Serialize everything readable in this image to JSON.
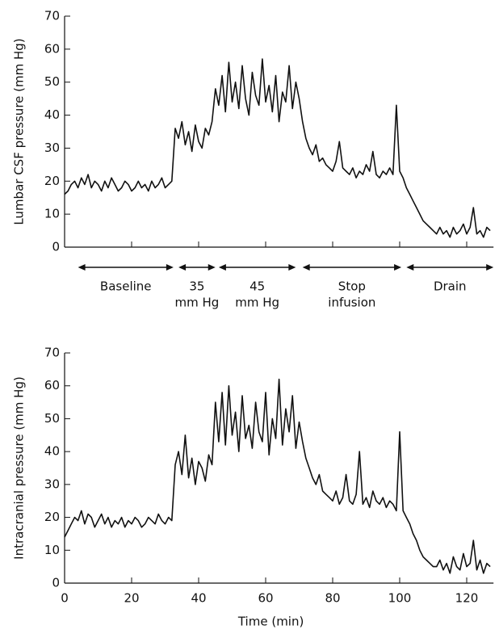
{
  "chart_data": [
    {
      "type": "line",
      "y_label": "Lumbar CSF pressure (mm Hg)",
      "x": [
        0,
        1,
        2,
        3,
        4,
        5,
        6,
        7,
        8,
        9,
        10,
        11,
        12,
        13,
        14,
        15,
        16,
        17,
        18,
        19,
        20,
        21,
        22,
        23,
        24,
        25,
        26,
        27,
        28,
        29,
        30,
        31,
        32,
        33,
        34,
        35,
        36,
        37,
        38,
        39,
        40,
        41,
        42,
        43,
        44,
        45,
        46,
        47,
        48,
        49,
        50,
        51,
        52,
        53,
        54,
        55,
        56,
        57,
        58,
        59,
        60,
        61,
        62,
        63,
        64,
        65,
        66,
        67,
        68,
        69,
        70,
        71,
        72,
        73,
        74,
        75,
        76,
        77,
        78,
        79,
        80,
        81,
        82,
        83,
        84,
        85,
        86,
        87,
        88,
        89,
        90,
        91,
        92,
        93,
        94,
        95,
        96,
        97,
        98,
        99,
        100,
        101,
        102,
        103,
        104,
        105,
        106,
        107,
        108,
        109,
        110,
        111,
        112,
        113,
        114,
        115,
        116,
        117,
        118,
        119,
        120,
        121,
        122,
        123,
        124,
        125,
        126,
        127
      ],
      "values": [
        16,
        17,
        19,
        20,
        18,
        21,
        19,
        22,
        18,
        20,
        19,
        17,
        20,
        18,
        21,
        19,
        17,
        18,
        20,
        19,
        17,
        18,
        20,
        18,
        19,
        17,
        20,
        18,
        19,
        21,
        18,
        19,
        20,
        36,
        33,
        38,
        31,
        35,
        29,
        37,
        32,
        30,
        36,
        34,
        38,
        48,
        43,
        52,
        41,
        56,
        44,
        50,
        42,
        55,
        45,
        40,
        53,
        46,
        43,
        57,
        44,
        49,
        41,
        52,
        38,
        47,
        44,
        55,
        42,
        50,
        45,
        38,
        33,
        30,
        28,
        31,
        26,
        27,
        25,
        24,
        23,
        26,
        32,
        24,
        23,
        22,
        24,
        21,
        23,
        22,
        25,
        23,
        29,
        22,
        21,
        23,
        22,
        24,
        22,
        43,
        23,
        21,
        18,
        16,
        14,
        12,
        10,
        8,
        7,
        6,
        5,
        4,
        6,
        4,
        5,
        3,
        6,
        4,
        5,
        7,
        4,
        6,
        12,
        4,
        5,
        3,
        6,
        5
      ],
      "color": "#111111",
      "xlim": [
        0,
        128
      ],
      "ylim": [
        0,
        70
      ],
      "yticks": [
        0,
        10,
        20,
        30,
        40,
        50,
        60,
        70
      ],
      "annotations": [
        {
          "label": [
            "Baseline"
          ],
          "start": 4,
          "end": 32.5
        },
        {
          "label": [
            "35",
            "mm Hg"
          ],
          "start": 34,
          "end": 45
        },
        {
          "label": [
            "45",
            "mm Hg"
          ],
          "start": 46,
          "end": 69
        },
        {
          "label": [
            "Stop",
            "infusion"
          ],
          "start": 71,
          "end": 100.5
        },
        {
          "label": [
            "Drain"
          ],
          "start": 102,
          "end": 128
        }
      ]
    },
    {
      "type": "line",
      "y_label": "Intracranial pressure (mm Hg)",
      "x_label": "Time (min)",
      "x": [
        0,
        1,
        2,
        3,
        4,
        5,
        6,
        7,
        8,
        9,
        10,
        11,
        12,
        13,
        14,
        15,
        16,
        17,
        18,
        19,
        20,
        21,
        22,
        23,
        24,
        25,
        26,
        27,
        28,
        29,
        30,
        31,
        32,
        33,
        34,
        35,
        36,
        37,
        38,
        39,
        40,
        41,
        42,
        43,
        44,
        45,
        46,
        47,
        48,
        49,
        50,
        51,
        52,
        53,
        54,
        55,
        56,
        57,
        58,
        59,
        60,
        61,
        62,
        63,
        64,
        65,
        66,
        67,
        68,
        69,
        70,
        71,
        72,
        73,
        74,
        75,
        76,
        77,
        78,
        79,
        80,
        81,
        82,
        83,
        84,
        85,
        86,
        87,
        88,
        89,
        90,
        91,
        92,
        93,
        94,
        95,
        96,
        97,
        98,
        99,
        100,
        101,
        102,
        103,
        104,
        105,
        106,
        107,
        108,
        109,
        110,
        111,
        112,
        113,
        114,
        115,
        116,
        117,
        118,
        119,
        120,
        121,
        122,
        123,
        124,
        125,
        126,
        127
      ],
      "values": [
        14,
        16,
        18,
        20,
        19,
        22,
        18,
        21,
        20,
        17,
        19,
        21,
        18,
        20,
        17,
        19,
        18,
        20,
        17,
        19,
        18,
        20,
        19,
        17,
        18,
        20,
        19,
        18,
        21,
        19,
        18,
        20,
        19,
        36,
        40,
        33,
        45,
        32,
        38,
        30,
        37,
        35,
        31,
        39,
        36,
        55,
        43,
        58,
        42,
        60,
        45,
        52,
        40,
        57,
        44,
        48,
        41,
        55,
        46,
        43,
        58,
        39,
        50,
        44,
        62,
        42,
        53,
        46,
        57,
        41,
        49,
        43,
        38,
        35,
        32,
        30,
        33,
        28,
        27,
        26,
        25,
        28,
        24,
        26,
        33,
        25,
        24,
        27,
        40,
        24,
        26,
        23,
        28,
        25,
        24,
        26,
        23,
        25,
        24,
        22,
        46,
        22,
        20,
        18,
        15,
        13,
        10,
        8,
        7,
        6,
        5,
        5,
        7,
        4,
        6,
        3,
        8,
        5,
        4,
        9,
        5,
        6,
        13,
        4,
        7,
        3,
        6,
        5
      ],
      "color": "#111111",
      "xlim": [
        0,
        128
      ],
      "ylim": [
        0,
        70
      ],
      "yticks": [
        0,
        10,
        20,
        30,
        40,
        50,
        60,
        70
      ],
      "xticks": [
        0,
        20,
        40,
        60,
        80,
        100,
        120
      ]
    }
  ]
}
